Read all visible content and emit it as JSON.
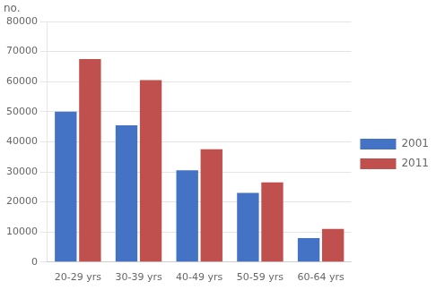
{
  "chart_data": {
    "type": "bar",
    "categories": [
      "20-29 yrs",
      "30-39 yrs",
      "40-49 yrs",
      "50-59 yrs",
      "60-64 yrs"
    ],
    "series": [
      {
        "name": "2001",
        "color": "#4472C4",
        "values": [
          50000,
          45500,
          30500,
          23000,
          8000
        ]
      },
      {
        "name": "2011",
        "color": "#C0504D",
        "values": [
          67500,
          60500,
          37500,
          26500,
          11000
        ]
      }
    ],
    "ylim": [
      0,
      80000
    ],
    "yticks": [
      0,
      10000,
      20000,
      30000,
      40000,
      50000,
      60000,
      70000,
      80000
    ],
    "grid": true,
    "legend": "right",
    "annotations": [
      "no."
    ]
  }
}
